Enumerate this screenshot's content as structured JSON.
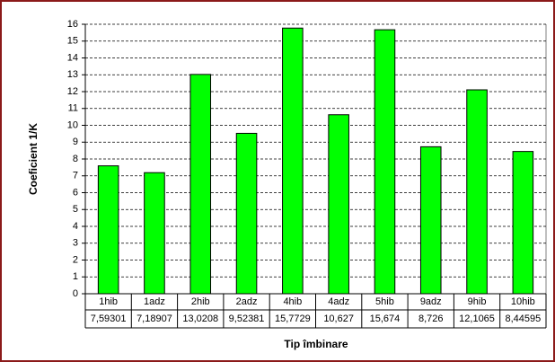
{
  "chart_data": {
    "type": "bar",
    "categories": [
      "1hib",
      "1adz",
      "2hib",
      "2adz",
      "4hib",
      "4adz",
      "5hib",
      "9adz",
      "9hib",
      "10hib"
    ],
    "values": [
      7.59301,
      7.18907,
      13.0208,
      9.52381,
      15.7729,
      10.627,
      15.674,
      8.726,
      12.1065,
      8.44595
    ],
    "value_labels": [
      "7,59301",
      "7,18907",
      "13,0208",
      "9,52381",
      "15,7729",
      "10,627",
      "15,674",
      "8,726",
      "12,1065",
      "8,44595"
    ],
    "color": "#00ff00",
    "ylabel": "Coeficient 1/K",
    "xlabel": "Tip îmbinare",
    "ylim": [
      0,
      16
    ],
    "yticks": [
      0,
      1,
      2,
      3,
      4,
      5,
      6,
      7,
      8,
      9,
      10,
      11,
      12,
      13,
      14,
      15,
      16
    ],
    "grid": true
  }
}
